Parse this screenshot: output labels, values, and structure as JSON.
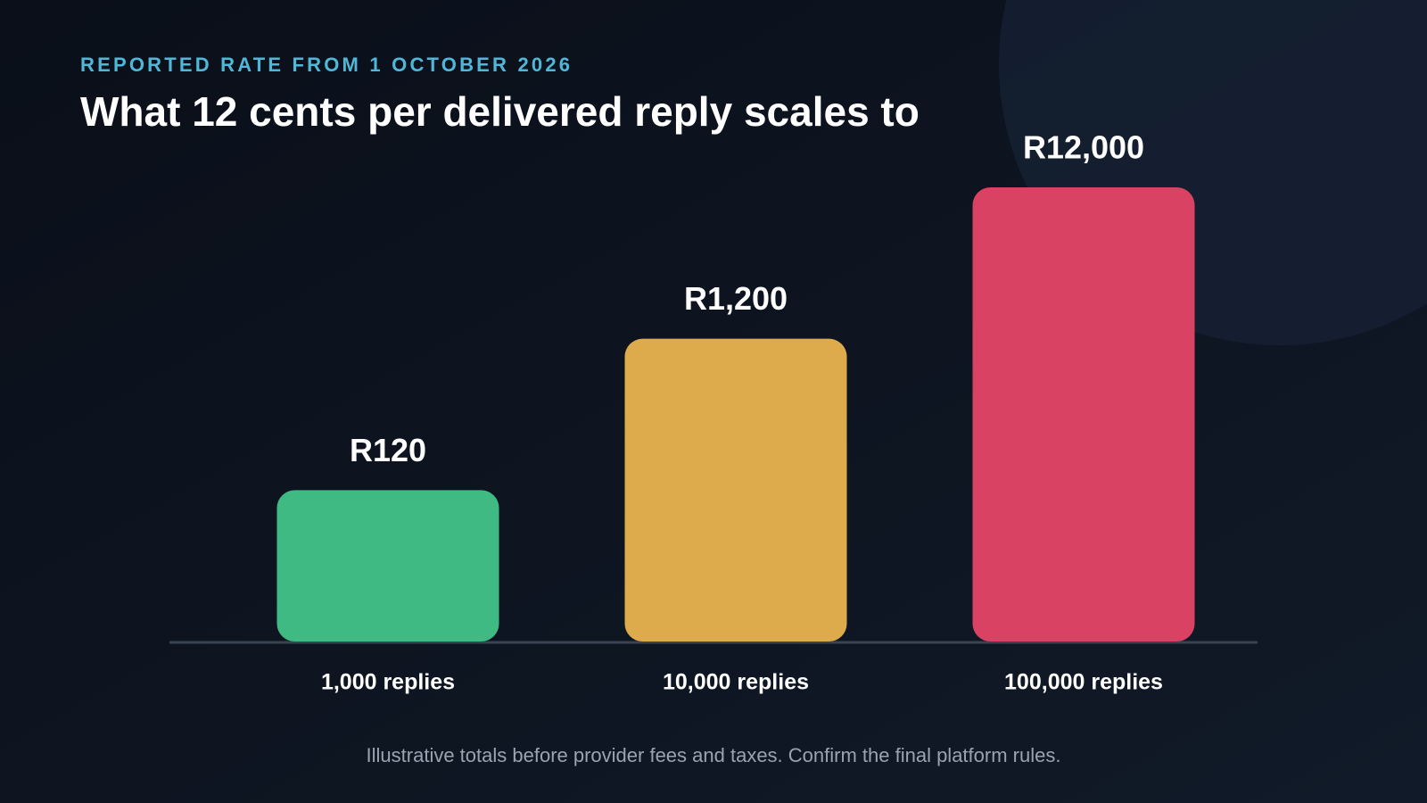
{
  "chart_data": {
    "type": "bar",
    "subtitle": "REPORTED RATE FROM 1 OCTOBER 2026",
    "title": "What 12 cents per delivered reply scales to",
    "categories": [
      "1,000 replies",
      "10,000 replies",
      "100,000 replies"
    ],
    "values": [
      120,
      1200,
      12000
    ],
    "value_labels": [
      "R120",
      "R1,200",
      "R12,000"
    ],
    "colors": [
      "#3fba82",
      "#ddab4c",
      "#d94263"
    ],
    "ylim": [
      12,
      12000
    ],
    "log_scale": true,
    "note": "Illustrative totals before provider fees and taxes. Confirm the final platform rules."
  }
}
